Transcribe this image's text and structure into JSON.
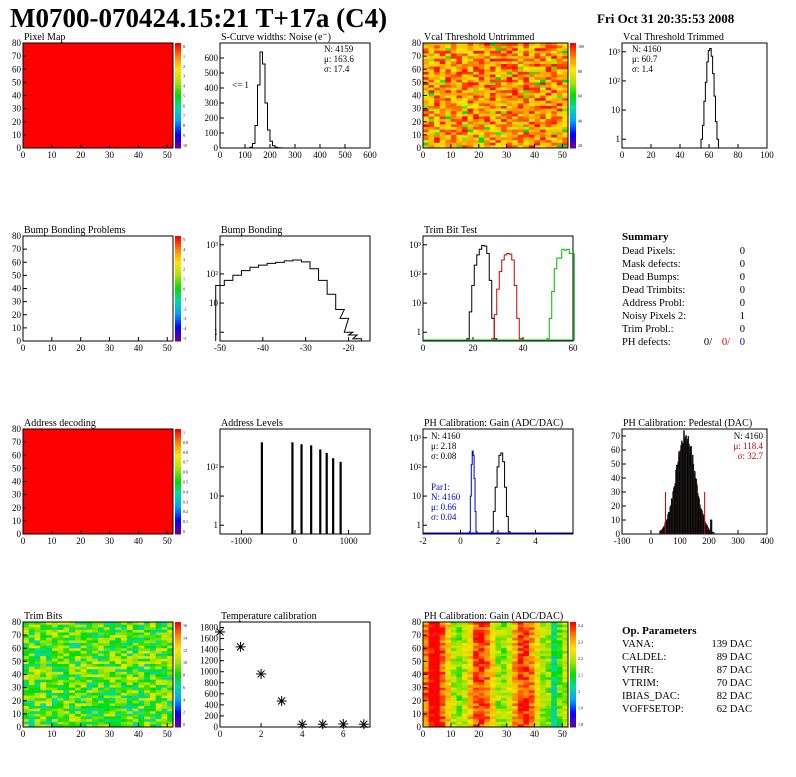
{
  "header": {
    "title": "M0700-070424.15:21 T+17a (C4)",
    "date": "Fri Oct 31 20:35:53 2008"
  },
  "summary": {
    "heading": "Summary",
    "rows": [
      {
        "label": "Dead Pixels:",
        "value": "0"
      },
      {
        "label": "Mask defects:",
        "value": "0"
      },
      {
        "label": "Dead Bumps:",
        "value": "0"
      },
      {
        "label": "Dead Trimbits:",
        "value": "0"
      },
      {
        "label": "Address Probl:",
        "value": "0"
      },
      {
        "label": "Noisy Pixels 2:",
        "value": "1"
      },
      {
        "label": "Trim Probl.:",
        "value": "0"
      }
    ],
    "ph_defects": {
      "label": "PH defects:",
      "v1": "0/",
      "v2": "0/",
      "v3": "0"
    }
  },
  "op_params": {
    "heading": "Op. Parameters",
    "rows": [
      {
        "label": "VANA:",
        "value": "139 DAC"
      },
      {
        "label": "CALDEL:",
        "value": "89 DAC"
      },
      {
        "label": "VTHR:",
        "value": "87 DAC"
      },
      {
        "label": "VTRIM:",
        "value": "70 DAC"
      },
      {
        "label": "IBIAS_DAC:",
        "value": "82 DAC"
      },
      {
        "label": "VOFFSETOP:",
        "value": "62 DAC"
      }
    ]
  },
  "colors": {
    "black": "#000000",
    "red": "#cc0000",
    "blue": "#0000cc",
    "green": "#00cc00",
    "map_red": "#ff0000"
  },
  "chart_data": [
    {
      "id": "pixel_map",
      "type": "heatmap",
      "title": "Pixel Map",
      "xlim": [
        0,
        52
      ],
      "ylim": [
        0,
        80
      ],
      "xticks": [
        "0",
        "10",
        "20",
        "30",
        "40",
        "50"
      ],
      "yticks": [
        "0",
        "10",
        "20",
        "30",
        "40",
        "50",
        "60",
        "70",
        "80"
      ],
      "fill": "uniform",
      "zlim": [
        0,
        10
      ],
      "zticks": [
        "0",
        "1",
        "2",
        "3",
        "4",
        "5",
        "6",
        "7",
        "8",
        "9",
        "10"
      ]
    },
    {
      "id": "scurve",
      "type": "line",
      "title": "S-Curve widths: Noise (e⁻)",
      "xlim": [
        0,
        600
      ],
      "ylim": [
        0,
        700
      ],
      "xticks": [
        "0",
        "100",
        "200",
        "300",
        "400",
        "500",
        "600"
      ],
      "yticks": [
        "0",
        "100",
        "200",
        "300",
        "400",
        "500",
        "600"
      ],
      "stats": [
        "N: 4159",
        "μ: 163.6",
        "σ: 17.4"
      ],
      "annotation": "<= 1",
      "series": [
        {
          "x": [
            115,
            125,
            135,
            145,
            155,
            165,
            175,
            185,
            195,
            205,
            215,
            225,
            235,
            245,
            255
          ],
          "values": [
            0,
            5,
            30,
            150,
            420,
            640,
            560,
            300,
            120,
            45,
            15,
            5,
            2,
            1,
            0
          ]
        }
      ]
    },
    {
      "id": "vcal_untrimmed",
      "type": "heatmap",
      "title": "Vcal Threshold Untrimmed",
      "xlim": [
        0,
        52
      ],
      "ylim": [
        0,
        80
      ],
      "xticks": [
        "0",
        "10",
        "20",
        "30",
        "40",
        "50"
      ],
      "yticks": [
        "0",
        "10",
        "20",
        "30",
        "40",
        "50",
        "60",
        "70",
        "80"
      ],
      "fill": "noise-hot",
      "zticks": [
        "100",
        "80",
        "60",
        "40",
        "20"
      ]
    },
    {
      "id": "vcal_trimmed",
      "type": "line",
      "title": "Vcal Threshold Trimmed",
      "log_y": true,
      "xlim": [
        0,
        100
      ],
      "ylim": [
        0.5,
        2000
      ],
      "xticks": [
        "0",
        "20",
        "40",
        "60",
        "80",
        "100"
      ],
      "yticks": [
        "1",
        "10",
        "10²",
        "10³"
      ],
      "stats": [
        "N: 4160",
        "μ: 60.7",
        "σ: 1.4"
      ],
      "series": [
        {
          "x": [
            55,
            56,
            57,
            58,
            59,
            60,
            61,
            62,
            63,
            64,
            65,
            66
          ],
          "values": [
            1,
            3,
            20,
            90,
            450,
            1100,
            1300,
            700,
            180,
            30,
            4,
            1
          ]
        }
      ]
    },
    {
      "id": "bump_problems",
      "type": "heatmap",
      "title": "Bump Bonding Problems",
      "xlim": [
        0,
        52
      ],
      "ylim": [
        0,
        80
      ],
      "xticks": [
        "0",
        "10",
        "20",
        "30",
        "40",
        "50"
      ],
      "yticks": [
        "0",
        "10",
        "20",
        "30",
        "40",
        "50",
        "60",
        "70",
        "80"
      ],
      "fill": "empty",
      "zticks": [
        "5",
        "4",
        "3",
        "2",
        "1",
        "0",
        "-1",
        "-2",
        "-3",
        "-4",
        "-5"
      ]
    },
    {
      "id": "bump_bonding",
      "type": "line",
      "title": "Bump Bonding",
      "log_y": true,
      "xlim": [
        -50,
        -15
      ],
      "ylim": [
        0.5,
        2000
      ],
      "xticks": [
        "-50",
        "-40",
        "-30",
        "-20"
      ],
      "yticks": [
        "1",
        "10",
        "10²",
        "10³"
      ],
      "series": [
        {
          "x": [
            -50,
            -48,
            -46,
            -44,
            -42,
            -40,
            -38,
            -36,
            -34,
            -32,
            -30,
            -28,
            -26,
            -24,
            -22,
            -21,
            -20,
            -19,
            -18
          ],
          "values": [
            40,
            60,
            90,
            130,
            170,
            200,
            230,
            250,
            280,
            300,
            260,
            150,
            60,
            20,
            6,
            3,
            1,
            0.8,
            0.6
          ]
        }
      ]
    },
    {
      "id": "trim_bit_test",
      "type": "line",
      "title": "Trim Bit Test",
      "log_y": true,
      "xlim": [
        0,
        60
      ],
      "ylim": [
        0.5,
        2000
      ],
      "xticks": [
        "0",
        "20",
        "40",
        "60"
      ],
      "yticks": [
        "1",
        "10",
        "10²",
        "10³"
      ],
      "series": [
        {
          "color": "black",
          "x": [
            18,
            19,
            20,
            21,
            22,
            23,
            24,
            25,
            26,
            27,
            28,
            29
          ],
          "values": [
            0.6,
            5,
            40,
            200,
            450,
            700,
            950,
            900,
            500,
            60,
            3,
            0.6
          ]
        },
        {
          "color": "red",
          "x": [
            28,
            29,
            30,
            31,
            32,
            33,
            34,
            35,
            36,
            37,
            38,
            39
          ],
          "values": [
            0.6,
            4,
            30,
            120,
            300,
            450,
            500,
            480,
            300,
            40,
            3,
            0.6
          ]
        },
        {
          "color": "green",
          "x": [
            50,
            51,
            52,
            53,
            54,
            55,
            56,
            57,
            58,
            59,
            60
          ],
          "values": [
            0.6,
            3,
            25,
            150,
            350,
            350,
            700,
            650,
            700,
            500,
            500
          ]
        }
      ]
    },
    {
      "id": "address_decoding",
      "type": "heatmap",
      "title": "Address decoding",
      "xlim": [
        0,
        52
      ],
      "ylim": [
        0,
        80
      ],
      "xticks": [
        "0",
        "10",
        "20",
        "30",
        "40",
        "50"
      ],
      "yticks": [
        "0",
        "10",
        "20",
        "30",
        "40",
        "50",
        "60",
        "70",
        "80"
      ],
      "fill": "uniform",
      "zticks": [
        "1",
        "0.9",
        "0.8",
        "0.7",
        "0.6",
        "0.5",
        "0.4",
        "0.3",
        "0.2",
        "0.1",
        "0"
      ]
    },
    {
      "id": "address_levels",
      "type": "bar",
      "title": "Address Levels",
      "log_y": true,
      "xlim": [
        -1400,
        1400
      ],
      "ylim": [
        0.5,
        2000
      ],
      "xticks": [
        "-1000",
        "0",
        "1000"
      ],
      "yticks": [
        "1",
        "10",
        "10²"
      ],
      "x": [
        -620,
        -50,
        120,
        300,
        470,
        590,
        710,
        850
      ],
      "values": [
        700,
        700,
        600,
        550,
        400,
        300,
        200,
        150
      ]
    },
    {
      "id": "ph_gain",
      "type": "line",
      "title": "PH Calibration: Gain (ADC/DAC)",
      "log_y": true,
      "xlim": [
        -2,
        6
      ],
      "ylim": [
        0.5,
        2000
      ],
      "xticks": [
        "-2",
        "0",
        "2",
        "4"
      ],
      "yticks": [
        "1",
        "10",
        "10²",
        "10³"
      ],
      "stats": [
        "N: 4160",
        "μ: 2.18",
        "σ: 0.08"
      ],
      "stats2": [
        "Par1:",
        "N: 4160",
        "μ: 0.66",
        "σ: 0.04"
      ],
      "series": [
        {
          "color": "black",
          "x": [
            1.7,
            1.8,
            1.9,
            2.0,
            2.1,
            2.2,
            2.3,
            2.4,
            2.5,
            2.6
          ],
          "values": [
            0.6,
            3,
            20,
            100,
            250,
            300,
            150,
            20,
            2,
            0.6
          ]
        },
        {
          "color": "blue",
          "x": [
            0.5,
            0.55,
            0.6,
            0.65,
            0.7,
            0.75,
            0.8,
            0.85
          ],
          "values": [
            0.6,
            10,
            120,
            350,
            250,
            40,
            3,
            0.6
          ]
        }
      ]
    },
    {
      "id": "ph_pedestal",
      "type": "bar",
      "title": "PH Calibration: Pedestal (DAC)",
      "xlim": [
        -100,
        400
      ],
      "ylim": [
        0,
        75
      ],
      "xticks": [
        "-100",
        "0",
        "100",
        "200",
        "300",
        "400"
      ],
      "yticks": [
        "0",
        "10",
        "20",
        "30",
        "40",
        "50",
        "60",
        "70"
      ],
      "stats": [
        "N: 4160",
        "μ: 118.4",
        "σ: 32.7"
      ],
      "markers": [
        50,
        185
      ]
    },
    {
      "id": "trim_bits",
      "type": "heatmap",
      "title": "Trim Bits",
      "xlim": [
        0,
        52
      ],
      "ylim": [
        0,
        80
      ],
      "xticks": [
        "0",
        "10",
        "20",
        "30",
        "40",
        "50"
      ],
      "yticks": [
        "0",
        "10",
        "20",
        "30",
        "40",
        "50",
        "60",
        "70",
        "80"
      ],
      "fill": "noise-green",
      "zticks": [
        "16",
        "14",
        "12",
        "10",
        "8",
        "6",
        "4",
        "2",
        "0"
      ]
    },
    {
      "id": "temperature",
      "type": "scatter",
      "title": "Temperature calibration",
      "xlim": [
        0,
        7.3
      ],
      "ylim": [
        0,
        1900
      ],
      "xticks": [
        "0",
        "2",
        "4",
        "6"
      ],
      "yticks": [
        "0",
        "200",
        "400",
        "600",
        "800",
        "1000",
        "1200",
        "1400",
        "1600",
        "1800"
      ],
      "x": [
        0,
        1,
        2,
        3,
        4,
        5,
        6,
        7
      ],
      "values": [
        1720,
        1450,
        960,
        470,
        50,
        50,
        55,
        50
      ]
    },
    {
      "id": "ph_gain_map",
      "type": "heatmap",
      "title": "PH Calibration: Gain (ADC/DAC)",
      "xlim": [
        0,
        52
      ],
      "ylim": [
        0,
        80
      ],
      "xticks": [
        "0",
        "10",
        "20",
        "30",
        "40",
        "50"
      ],
      "yticks": [
        "0",
        "10",
        "20",
        "30",
        "40",
        "50",
        "60",
        "70",
        "80"
      ],
      "fill": "stripes",
      "zticks": [
        "2.4",
        "2.3",
        "2.2",
        "2.1",
        "2",
        "1.9",
        "1.8"
      ]
    }
  ]
}
